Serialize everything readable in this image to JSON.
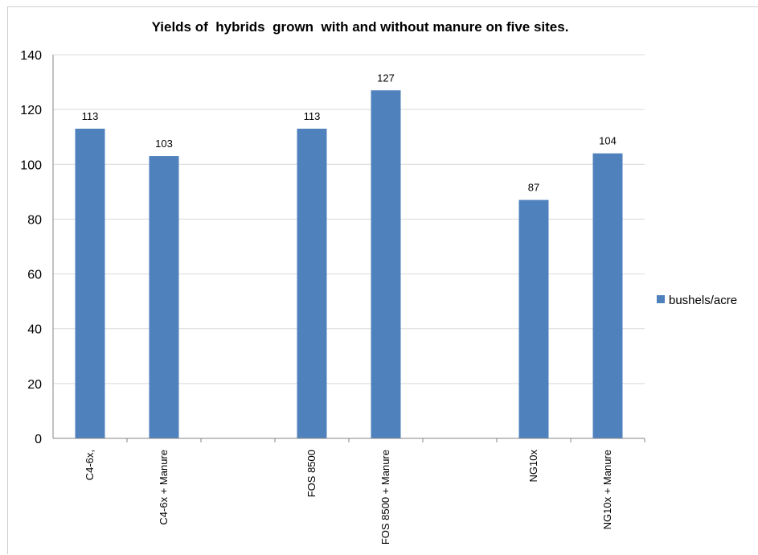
{
  "chart_data": {
    "type": "bar",
    "title": "Yields of  hybrids  grown  with and without manure on five sites.",
    "xlabel": "",
    "ylabel": "",
    "categories": [
      "C4-6x,",
      "C4-6x + Manure",
      "",
      "FOS 8500",
      "FOS 8500 + Manure",
      "",
      "NG10x",
      "NG10x + Manure"
    ],
    "series": [
      {
        "name": "bushels/acre",
        "values": [
          113,
          103,
          null,
          113,
          127,
          null,
          87,
          104
        ],
        "data_labels": [
          "113",
          "103",
          "",
          "113",
          "127",
          "",
          "87",
          "104"
        ]
      }
    ],
    "ylim": [
      0,
      140
    ],
    "yticks": [
      0,
      20,
      40,
      60,
      80,
      100,
      120,
      140
    ],
    "grid": true,
    "legend_position": "right",
    "colors": {
      "bar": "#4f81bd",
      "grid": "#d9d9d9",
      "axis": "#868686"
    }
  }
}
